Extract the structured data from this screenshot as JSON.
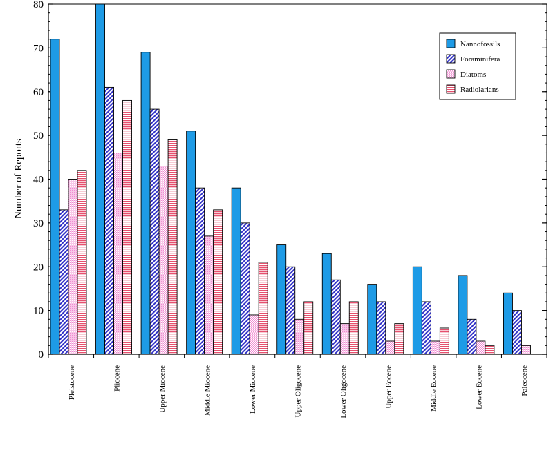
{
  "chart_data": {
    "type": "bar",
    "ylabel": "Number of Reports",
    "xlabel": "",
    "ylim": [
      0,
      80
    ],
    "yticks": [
      0,
      10,
      20,
      30,
      40,
      50,
      60,
      70,
      80
    ],
    "grid": false,
    "legend_position": "top-right",
    "categories": [
      "Pleistocene",
      "Pliocene",
      "Upper Miocene",
      "Middle Miocene",
      "Lower Miocene",
      "Upper Oligocene",
      "Lower Oligocene",
      "Upper Eocene",
      "Middle Eocene",
      "Lower Eocene",
      "Paleocene"
    ],
    "series": [
      {
        "name": "Nannofossils",
        "color": "#1e9be6",
        "pattern": "solid",
        "values": [
          72,
          80,
          69,
          51,
          38,
          25,
          23,
          16,
          20,
          18,
          14
        ]
      },
      {
        "name": "Foraminifera",
        "color": "#3232c8",
        "pattern": "diagonal-hatch",
        "values": [
          33,
          61,
          56,
          38,
          30,
          20,
          17,
          12,
          12,
          8,
          10
        ]
      },
      {
        "name": "Diatoms",
        "color": "#f08cd2",
        "pattern": "dots",
        "values": [
          40,
          46,
          43,
          27,
          9,
          8,
          7,
          3,
          3,
          3,
          2
        ]
      },
      {
        "name": "Radiolarians",
        "color": "#e6506e",
        "pattern": "horizontal-lines",
        "values": [
          42,
          58,
          49,
          33,
          21,
          12,
          12,
          7,
          6,
          2,
          0
        ]
      }
    ]
  }
}
